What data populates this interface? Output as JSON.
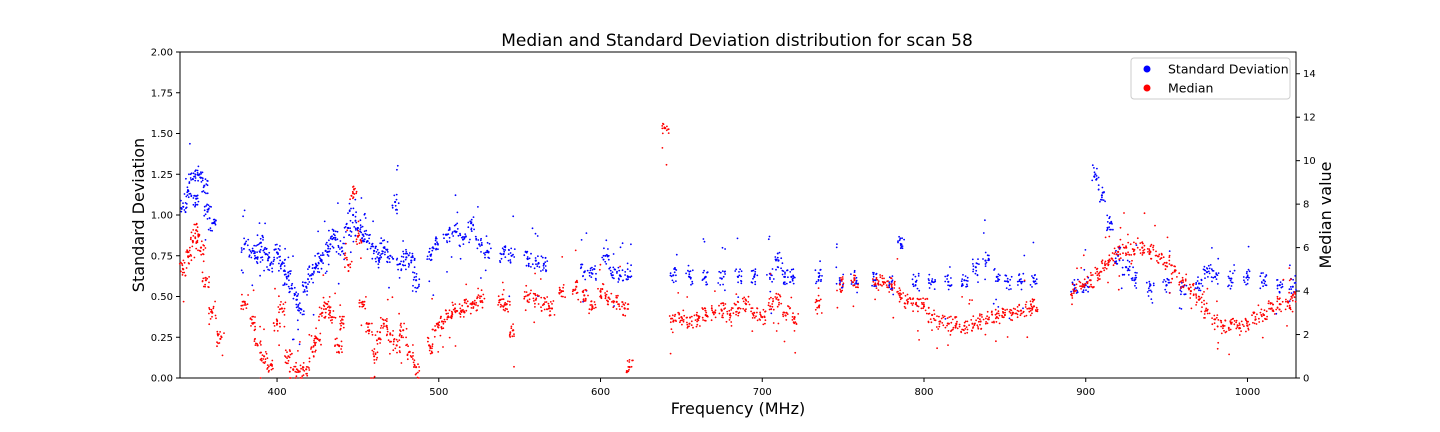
{
  "chart_data": {
    "type": "scatter",
    "title": "Median and Standard Deviation distribution for scan 58",
    "xlabel": "Frequency (MHz)",
    "ylabel_left": "Standard Deviation",
    "ylabel_right": "Median value",
    "xlim": [
      340,
      1030
    ],
    "ylim_left": [
      0,
      2.0
    ],
    "ylim_right": [
      0,
      15
    ],
    "x_ticks": [
      400,
      500,
      600,
      700,
      800,
      900,
      1000
    ],
    "y_left_ticks": [
      "0.00",
      "0.25",
      "0.50",
      "0.75",
      "1.00",
      "1.25",
      "1.50",
      "1.75",
      "2.00"
    ],
    "y_right_ticks": [
      "0",
      "2",
      "4",
      "6",
      "8",
      "10",
      "12",
      "14"
    ],
    "grid": false,
    "legend_position": "top-right",
    "legend": [
      {
        "label": "Standard Deviation",
        "color": "#0000ff"
      },
      {
        "label": "Median",
        "color": "#ff0000"
      }
    ],
    "series": [
      {
        "name": "Standard Deviation",
        "axis": "left",
        "color": "#0000ff",
        "points": [
          [
            342,
            1.05
          ],
          [
            345,
            1.15
          ],
          [
            348,
            1.22
          ],
          [
            350,
            1.1
          ],
          [
            352,
            1.25
          ],
          [
            355,
            1.18
          ],
          [
            357,
            1.02
          ],
          [
            360,
            0.95
          ],
          [
            380,
            0.82
          ],
          [
            385,
            0.78
          ],
          [
            388,
            0.74
          ],
          [
            390,
            0.83
          ],
          [
            393,
            0.76
          ],
          [
            396,
            0.7
          ],
          [
            400,
            0.77
          ],
          [
            403,
            0.7
          ],
          [
            406,
            0.62
          ],
          [
            409,
            0.55
          ],
          [
            412,
            0.48
          ],
          [
            415,
            0.42
          ],
          [
            418,
            0.56
          ],
          [
            421,
            0.63
          ],
          [
            424,
            0.68
          ],
          [
            427,
            0.72
          ],
          [
            430,
            0.78
          ],
          [
            433,
            0.82
          ],
          [
            436,
            0.86
          ],
          [
            440,
            0.8
          ],
          [
            444,
            0.92
          ],
          [
            447,
            1.0
          ],
          [
            450,
            0.92
          ],
          [
            453,
            0.88
          ],
          [
            456,
            0.84
          ],
          [
            460,
            0.78
          ],
          [
            463,
            0.72
          ],
          [
            466,
            0.8
          ],
          [
            470,
            0.75
          ],
          [
            473,
            1.08
          ],
          [
            476,
            0.7
          ],
          [
            480,
            0.74
          ],
          [
            483,
            0.72
          ],
          [
            486,
            0.6
          ],
          [
            495,
            0.75
          ],
          [
            498,
            0.82
          ],
          [
            505,
            0.88
          ],
          [
            510,
            0.9
          ],
          [
            515,
            0.85
          ],
          [
            520,
            0.95
          ],
          [
            525,
            0.82
          ],
          [
            530,
            0.78
          ],
          [
            540,
            0.76
          ],
          [
            545,
            0.75
          ],
          [
            555,
            0.73
          ],
          [
            560,
            0.72
          ],
          [
            565,
            0.7
          ],
          [
            590,
            0.65
          ],
          [
            595,
            0.64
          ],
          [
            603,
            0.75
          ],
          [
            607,
            0.63
          ],
          [
            612,
            0.63
          ],
          [
            617,
            0.62
          ],
          [
            645,
            0.63
          ],
          [
            655,
            0.62
          ],
          [
            665,
            0.62
          ],
          [
            675,
            0.61
          ],
          [
            685,
            0.62
          ],
          [
            695,
            0.62
          ],
          [
            705,
            0.64
          ],
          [
            710,
            0.72
          ],
          [
            714,
            0.62
          ],
          [
            718,
            0.62
          ],
          [
            735,
            0.62
          ],
          [
            748,
            0.6
          ],
          [
            757,
            0.61
          ],
          [
            770,
            0.6
          ],
          [
            780,
            0.59
          ],
          [
            786,
            0.82
          ],
          [
            795,
            0.59
          ],
          [
            805,
            0.59
          ],
          [
            815,
            0.59
          ],
          [
            825,
            0.6
          ],
          [
            832,
            0.68
          ],
          [
            838,
            0.72
          ],
          [
            845,
            0.62
          ],
          [
            852,
            0.59
          ],
          [
            860,
            0.59
          ],
          [
            868,
            0.59
          ],
          [
            893,
            0.57
          ],
          [
            900,
            0.57
          ],
          [
            906,
            1.25
          ],
          [
            910,
            1.12
          ],
          [
            915,
            0.95
          ],
          [
            920,
            0.75
          ],
          [
            925,
            0.68
          ],
          [
            930,
            0.6
          ],
          [
            940,
            0.57
          ],
          [
            950,
            0.57
          ],
          [
            960,
            0.56
          ],
          [
            970,
            0.58
          ],
          [
            975,
            0.65
          ],
          [
            980,
            0.62
          ],
          [
            990,
            0.61
          ],
          [
            1000,
            0.62
          ],
          [
            1010,
            0.6
          ],
          [
            1020,
            0.57
          ],
          [
            1028,
            0.56
          ]
        ]
      },
      {
        "name": "Median",
        "axis": "right",
        "color": "#ff0000",
        "points": [
          [
            342,
            5.0
          ],
          [
            345,
            5.6
          ],
          [
            348,
            6.3
          ],
          [
            350,
            6.8
          ],
          [
            353,
            6.0
          ],
          [
            356,
            4.5
          ],
          [
            360,
            3.0
          ],
          [
            365,
            1.8
          ],
          [
            380,
            3.5
          ],
          [
            385,
            2.5
          ],
          [
            388,
            1.5
          ],
          [
            392,
            1.0
          ],
          [
            396,
            0.6
          ],
          [
            400,
            2.5
          ],
          [
            403,
            3.2
          ],
          [
            407,
            1.0
          ],
          [
            410,
            0.4
          ],
          [
            414,
            0.3
          ],
          [
            418,
            0.4
          ],
          [
            422,
            1.2
          ],
          [
            425,
            1.8
          ],
          [
            428,
            3.0
          ],
          [
            431,
            3.4
          ],
          [
            434,
            2.8
          ],
          [
            438,
            1.5
          ],
          [
            441,
            2.5
          ],
          [
            444,
            5.2
          ],
          [
            447,
            8.5
          ],
          [
            450,
            6.5
          ],
          [
            453,
            3.5
          ],
          [
            457,
            2.2
          ],
          [
            460,
            1.0
          ],
          [
            463,
            1.8
          ],
          [
            466,
            2.5
          ],
          [
            470,
            2.0
          ],
          [
            474,
            1.5
          ],
          [
            478,
            2.2
          ],
          [
            482,
            1.2
          ],
          [
            486,
            0.5
          ],
          [
            494,
            1.5
          ],
          [
            498,
            2.2
          ],
          [
            502,
            2.6
          ],
          [
            506,
            2.8
          ],
          [
            510,
            3.2
          ],
          [
            514,
            3.1
          ],
          [
            518,
            3.3
          ],
          [
            522,
            3.4
          ],
          [
            526,
            3.5
          ],
          [
            538,
            3.6
          ],
          [
            542,
            3.4
          ],
          [
            546,
            2.2
          ],
          [
            555,
            3.8
          ],
          [
            560,
            3.6
          ],
          [
            565,
            3.4
          ],
          [
            570,
            3.2
          ],
          [
            576,
            4.0
          ],
          [
            585,
            4.2
          ],
          [
            590,
            3.8
          ],
          [
            595,
            3.3
          ],
          [
            600,
            4.0
          ],
          [
            605,
            3.7
          ],
          [
            610,
            3.5
          ],
          [
            615,
            3.2
          ],
          [
            618,
            0.5
          ],
          [
            640,
            11.5
          ],
          [
            645,
            2.6
          ],
          [
            650,
            2.8
          ],
          [
            655,
            2.5
          ],
          [
            660,
            2.7
          ],
          [
            665,
            2.9
          ],
          [
            670,
            3.0
          ],
          [
            675,
            3.1
          ],
          [
            680,
            2.9
          ],
          [
            685,
            3.2
          ],
          [
            690,
            3.4
          ],
          [
            695,
            3.0
          ],
          [
            700,
            2.8
          ],
          [
            705,
            3.3
          ],
          [
            710,
            3.6
          ],
          [
            715,
            3.0
          ],
          [
            720,
            2.8
          ],
          [
            735,
            3.3
          ],
          [
            748,
            4.3
          ],
          [
            757,
            4.5
          ],
          [
            770,
            4.3
          ],
          [
            775,
            4.4
          ],
          [
            780,
            4.3
          ],
          [
            785,
            3.8
          ],
          [
            790,
            3.5
          ],
          [
            795,
            3.4
          ],
          [
            800,
            3.3
          ],
          [
            805,
            2.9
          ],
          [
            810,
            2.6
          ],
          [
            815,
            2.5
          ],
          [
            820,
            2.5
          ],
          [
            825,
            2.4
          ],
          [
            830,
            2.5
          ],
          [
            835,
            2.6
          ],
          [
            840,
            2.7
          ],
          [
            845,
            2.8
          ],
          [
            850,
            2.9
          ],
          [
            855,
            3.0
          ],
          [
            860,
            3.1
          ],
          [
            865,
            3.2
          ],
          [
            868,
            3.3
          ],
          [
            893,
            4.0
          ],
          [
            898,
            4.2
          ],
          [
            903,
            4.5
          ],
          [
            908,
            4.8
          ],
          [
            912,
            5.2
          ],
          [
            916,
            5.5
          ],
          [
            920,
            5.8
          ],
          [
            925,
            6.0
          ],
          [
            930,
            5.9
          ],
          [
            935,
            6.0
          ],
          [
            940,
            5.8
          ],
          [
            945,
            5.6
          ],
          [
            950,
            5.3
          ],
          [
            955,
            4.9
          ],
          [
            960,
            4.5
          ],
          [
            965,
            4.0
          ],
          [
            970,
            3.6
          ],
          [
            975,
            3.1
          ],
          [
            980,
            2.7
          ],
          [
            985,
            2.4
          ],
          [
            990,
            2.5
          ],
          [
            995,
            2.3
          ],
          [
            1000,
            2.4
          ],
          [
            1005,
            2.7
          ],
          [
            1010,
            2.9
          ],
          [
            1015,
            3.2
          ],
          [
            1020,
            3.4
          ],
          [
            1025,
            3.5
          ],
          [
            1028,
            3.8
          ]
        ]
      }
    ]
  }
}
